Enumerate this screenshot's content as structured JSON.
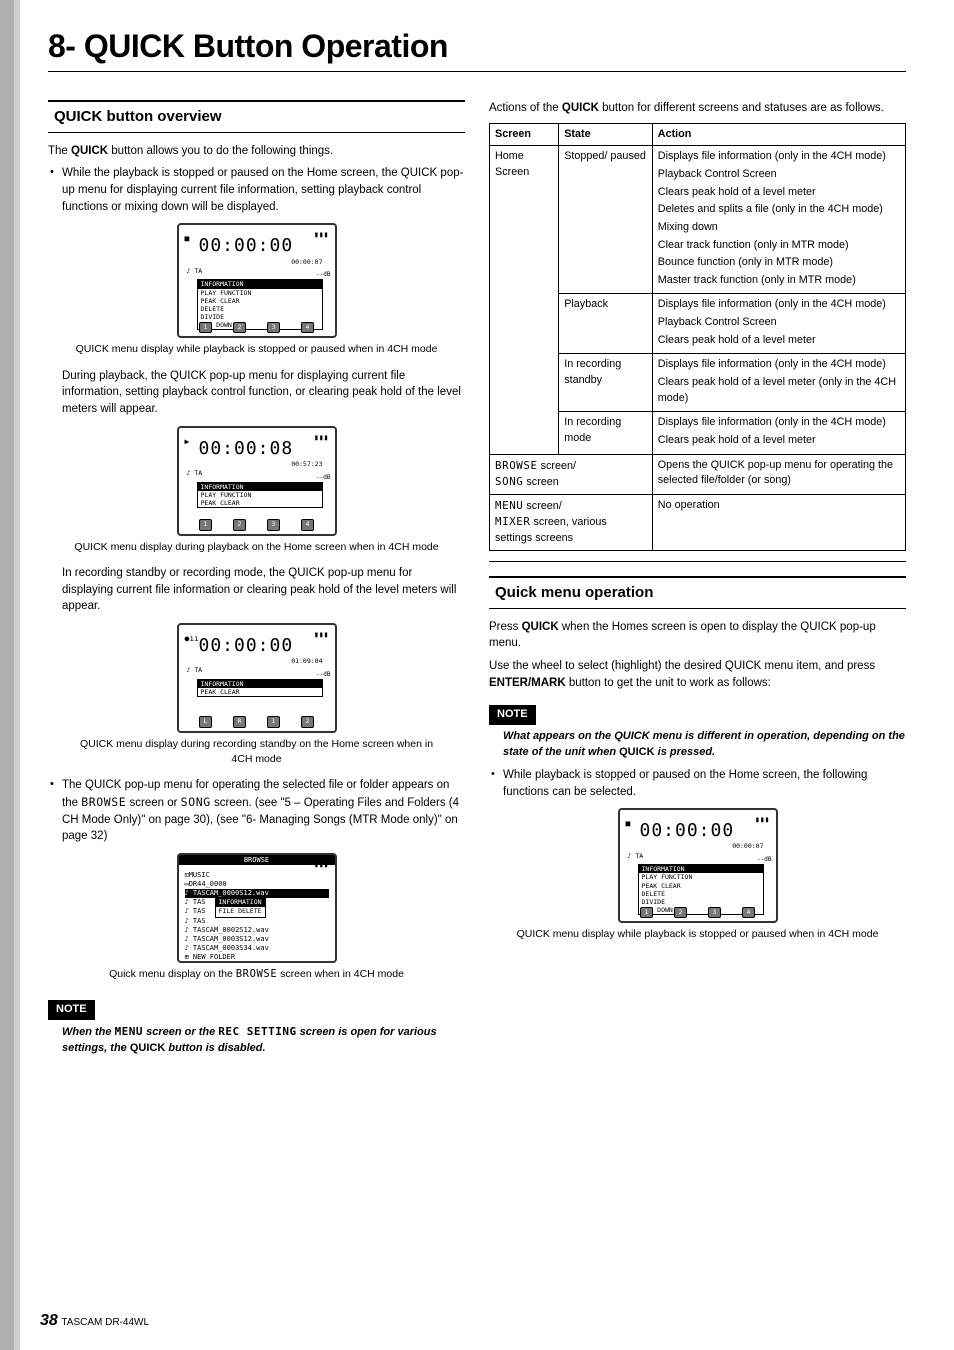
{
  "chapter_title": "8- QUICK Button Operation",
  "left": {
    "section_title": "QUICK button overview",
    "intro_line": "The QUICK button allows you to do the following things.",
    "bullet1": "While the playback is stopped or paused on the Home screen, the QUICK pop-up menu for displaying current file information, setting playback control functions or mixing down will be displayed.",
    "caption1": "QUICK menu display while playback is stopped or paused when in 4CH mode",
    "para2": "During playback, the QUICK pop-up menu for displaying current file information, setting playback control function, or clearing peak hold of the level meters will appear.",
    "caption2": "QUICK menu display during playback on the Home screen when in 4CH mode",
    "para3": "In recording standby or recording mode, the QUICK pop-up menu for displaying current file information or clearing peak hold of the level meters will appear.",
    "caption3": "QUICK menu display during recording standby on the Home screen when in 4CH mode",
    "bullet4a": "The QUICK pop-up menu for operating the selected file or folder appears on the ",
    "bullet4_browse": "BROWSE",
    "bullet4b": " screen or ",
    "bullet4_song": "SONG",
    "bullet4c": " screen. (see \"5 – Operating Files and Folders (4 CH Mode Only)\" on page 30), (see \"6- Managing Songs (MTR Mode only)\" on page 32)",
    "caption4a": "Quick menu display on the ",
    "caption4_browse": "BROWSE",
    "caption4b": " screen when in 4CH mode",
    "note1a": "When the ",
    "note1_menu": "MENU",
    "note1b": " screen or the ",
    "note1_rec": "REC SETTING",
    "note1c": " screen is open for various settings, the QUICK button is disabled."
  },
  "right": {
    "intro": "Actions of the QUICK button for different screens and statuses are as follows.",
    "table": {
      "headers": [
        "Screen",
        "State",
        "Action"
      ],
      "home_label": "Home Screen",
      "rows": [
        {
          "state": "Stopped/ paused",
          "actions": [
            "Displays file information (only in the 4CH mode)",
            "Playback Control Screen",
            "Clears peak hold of a level meter",
            "Deletes and splits a file (only in the 4CH mode)",
            "Mixing down",
            "Clear track function (only in MTR mode)",
            "Bounce function (only in MTR mode)",
            "Master track function (only in MTR mode)"
          ]
        },
        {
          "state": "Playback",
          "actions": [
            "Displays file information (only in the 4CH mode)",
            "Playback Control Screen",
            "Clears peak hold of a level meter"
          ]
        },
        {
          "state": "In recording standby",
          "actions": [
            "Displays file information (only in the 4CH mode)",
            "Clears peak hold of a level meter (only in the 4CH mode)"
          ]
        },
        {
          "state": "In recording mode",
          "actions": [
            "Displays file information (only in the 4CH mode)",
            "Clears peak hold of a level meter"
          ]
        }
      ],
      "browse_screen_a": "BROWSE",
      "browse_screen_b": " screen/ ",
      "browse_screen_c": "SONG",
      "browse_screen_d": " screen",
      "browse_action": "Opens the QUICK pop-up menu for operating the selected file/folder (or song)",
      "menu_screen_a": "MENU",
      "menu_screen_b": " screen/ ",
      "menu_screen_c": "MIXER",
      "menu_screen_d": " screen, various settings screens",
      "menu_action": "No operation"
    },
    "section2_title": "Quick menu operation",
    "s2_p1": "Press QUICK when the Homes screen is open to display the QUICK pop-up menu.",
    "s2_p2": "Use the wheel to select (highlight) the desired QUICK menu item, and press ENTER/MARK button to get the unit to work as follows:",
    "s2_note": "What appears on the QUICK menu is different in operation, depending on the state of the unit when QUICK is pressed.",
    "s2_bullet": "While playback is stopped or paused on the Home screen, the following functions can be selected.",
    "s2_caption": "QUICK menu display while playback is stopped or paused when in 4CH mode"
  },
  "screens": {
    "s1": {
      "icon": "■",
      "time": "00:00:00",
      "sub": "00:00:07",
      "menu": [
        "INFORMATION",
        "PLAY FUNCTION",
        "PEAK CLEAR",
        "DELETE",
        "DIVIDE",
        "MIX DOWN"
      ],
      "nums": [
        "1",
        "2",
        "3",
        "4"
      ]
    },
    "s2": {
      "icon": "▶",
      "time": "00:00:08",
      "sub": "00:57:23",
      "menu": [
        "INFORMATION",
        "PLAY FUNCTION",
        "PEAK CLEAR"
      ],
      "nums": [
        "1",
        "2",
        "3",
        "4"
      ]
    },
    "s3": {
      "icon": "●ıı",
      "time": "00:00:00",
      "sub": "01:09:04",
      "menu": [
        "INFORMATION",
        "PEAK CLEAR"
      ],
      "nums": [
        "L",
        "R",
        "1",
        "2"
      ]
    },
    "s4": {
      "title": "BROWSE",
      "files": [
        "⊡MUSIC",
        "▭DR44_0000",
        "♪ TASCAM_0000S12.wav",
        "♪ TAS",
        "♪ TAS",
        "♪ TAS",
        "♪ TASCAM_0002S12.wav",
        "♪ TASCAM_0003S12.wav",
        "♪ TASCAM_0003S34.wav",
        "⊞ NEW FOLDER"
      ],
      "popup": [
        "INFORMATION",
        "FILE DELETE"
      ]
    }
  },
  "footer": {
    "page": "38",
    "model": "TASCAM DR-44WL"
  }
}
